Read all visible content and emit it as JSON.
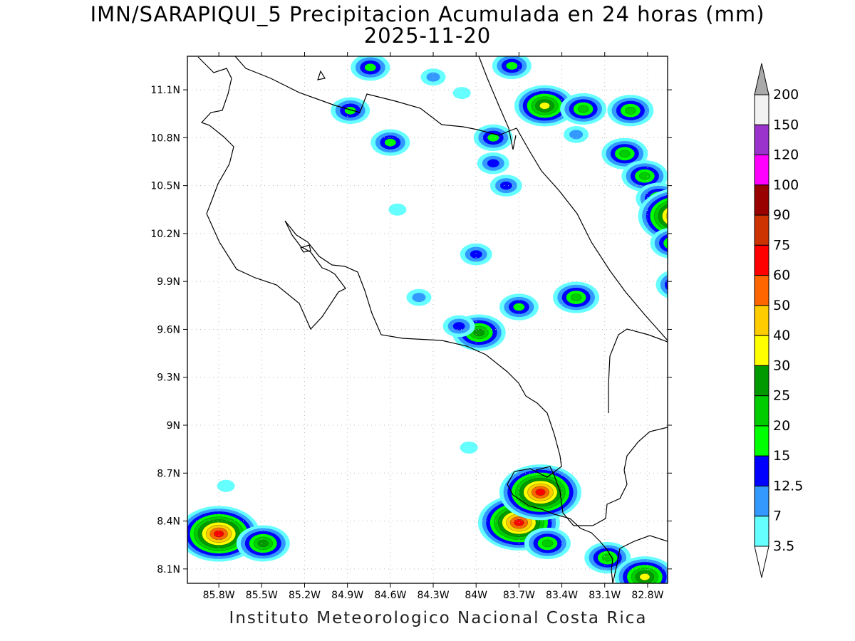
{
  "title": "IMN/SARAPIQUI_5 Precipitacion Acumulada en 24 horas (mm)",
  "date": "2025-11-20",
  "footer": "Instituto Meteorologico Nacional Costa Rica",
  "lat_labels": [
    "11.1N",
    "10.8N",
    "10.5N",
    "10.2N",
    "9.9N",
    "9.6N",
    "9.3N",
    "9N",
    "8.7N",
    "8.4N",
    "8.1N"
  ],
  "lon_labels": [
    "85.8W",
    "85.5W",
    "85.2W",
    "84.9W",
    "84.6W",
    "84.3W",
    "84W",
    "83.7W",
    "83.4W",
    "83.1W",
    "82.8W"
  ],
  "colorbar": {
    "labels": [
      "200",
      "150",
      "120",
      "100",
      "90",
      "75",
      "60",
      "50",
      "40",
      "30",
      "25",
      "20",
      "15",
      "12.5",
      "7",
      "3.5"
    ],
    "colors": [
      "#f2f2f2",
      "#9933cc",
      "#ff00ff",
      "#990000",
      "#cc3300",
      "#ff0000",
      "#ff6600",
      "#ffcc00",
      "#ffff00",
      "#009900",
      "#00cc00",
      "#00ff00",
      "#0000ff",
      "#3399ff",
      "#66ffff"
    ],
    "top_arrow_color": "#aaaaaa",
    "bottom_arrow_color": "#ffffff"
  },
  "grid": "dotted",
  "precip_cells": [
    {
      "lon": -85.88,
      "lat": 8.34,
      "level": 14
    },
    {
      "lon": -85.8,
      "lat": 8.32,
      "level": 5
    },
    {
      "lon": -85.49,
      "lat": 8.26,
      "level": 9
    },
    {
      "lon": -85.75,
      "lat": 8.62,
      "level": 14
    },
    {
      "lon": -83.7,
      "lat": 8.39,
      "level": 5
    },
    {
      "lon": -83.55,
      "lat": 8.58,
      "level": 5
    },
    {
      "lon": -83.5,
      "lat": 8.26,
      "level": 10
    },
    {
      "lon": -83.08,
      "lat": 8.17,
      "level": 10
    },
    {
      "lon": -82.82,
      "lat": 8.05,
      "level": 8
    },
    {
      "lon": -84.05,
      "lat": 8.86,
      "level": 14
    },
    {
      "lon": -83.3,
      "lat": 9.8,
      "level": 10
    },
    {
      "lon": -83.98,
      "lat": 9.58,
      "level": 9
    },
    {
      "lon": -83.7,
      "lat": 9.74,
      "level": 11
    },
    {
      "lon": -84.12,
      "lat": 9.62,
      "level": 12
    },
    {
      "lon": -84.4,
      "lat": 9.8,
      "level": 13
    },
    {
      "lon": -84.0,
      "lat": 10.07,
      "level": 12
    },
    {
      "lon": -84.6,
      "lat": 10.77,
      "level": 11
    },
    {
      "lon": -84.88,
      "lat": 10.97,
      "level": 11
    },
    {
      "lon": -83.88,
      "lat": 10.8,
      "level": 11
    },
    {
      "lon": -83.88,
      "lat": 10.64,
      "level": 12
    },
    {
      "lon": -83.79,
      "lat": 10.5,
      "level": 12
    },
    {
      "lon": -84.55,
      "lat": 10.35,
      "level": 14
    },
    {
      "lon": -84.74,
      "lat": 11.24,
      "level": 11
    },
    {
      "lon": -83.75,
      "lat": 11.25,
      "level": 11
    },
    {
      "lon": -83.52,
      "lat": 11.0,
      "level": 8
    },
    {
      "lon": -83.25,
      "lat": 10.98,
      "level": 10
    },
    {
      "lon": -82.92,
      "lat": 10.97,
      "level": 10
    },
    {
      "lon": -82.96,
      "lat": 10.7,
      "level": 10
    },
    {
      "lon": -82.82,
      "lat": 10.56,
      "level": 10
    },
    {
      "lon": -82.72,
      "lat": 10.42,
      "level": 10
    },
    {
      "lon": -82.58,
      "lat": 10.31,
      "level": 5
    },
    {
      "lon": -82.62,
      "lat": 10.14,
      "level": 10
    },
    {
      "lon": -82.58,
      "lat": 9.88,
      "level": 10
    },
    {
      "lon": -84.3,
      "lat": 11.18,
      "level": 13
    },
    {
      "lon": -84.1,
      "lat": 11.08,
      "level": 14
    },
    {
      "lon": -83.3,
      "lat": 10.82,
      "level": 13
    }
  ]
}
